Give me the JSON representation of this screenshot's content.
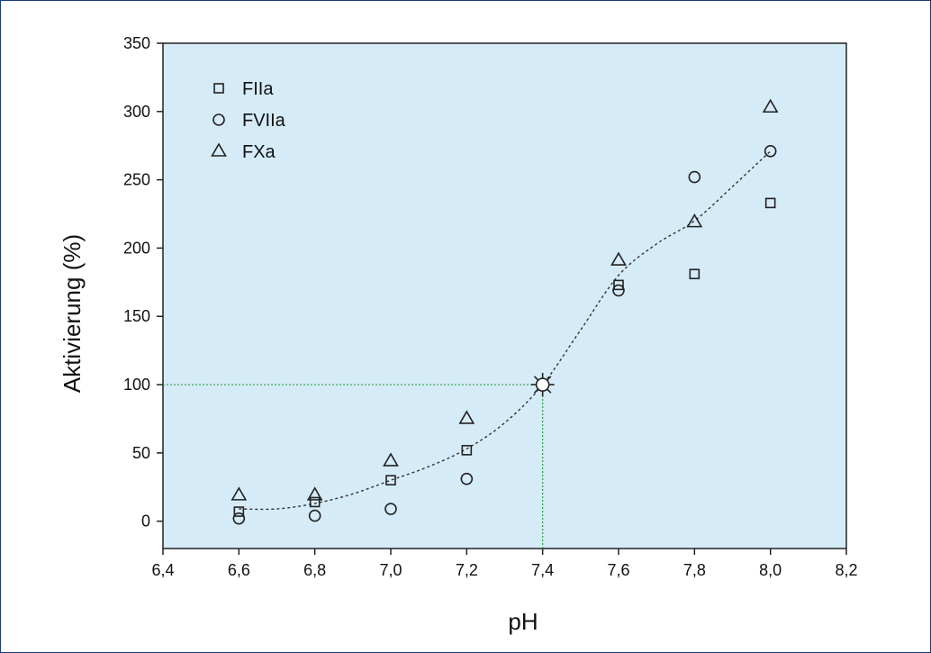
{
  "chart_data": {
    "type": "scatter",
    "title": "",
    "xlabel": "pH",
    "ylabel": "Aktivierung (%)",
    "xlim": [
      6.4,
      8.2
    ],
    "ylim": [
      -20,
      350
    ],
    "x_ticks": [
      "6,4",
      "6,6",
      "6,8",
      "7,0",
      "7,2",
      "7,4",
      "7,6",
      "7,8",
      "8,0",
      "8,2"
    ],
    "y_ticks": [
      "0",
      "50",
      "100",
      "150",
      "200",
      "250",
      "300",
      "350"
    ],
    "grid": false,
    "legend_position": "top-left",
    "plot_background": "#d6ebf8",
    "reference_color": "#2e9e44",
    "series": [
      {
        "name": "FIIa",
        "marker": "square",
        "x": [
          6.6,
          6.8,
          7.0,
          7.2,
          7.6,
          7.8,
          8.0
        ],
        "y": [
          7,
          14,
          30,
          52,
          173,
          181,
          233
        ]
      },
      {
        "name": "FVIIa",
        "marker": "circle",
        "x": [
          6.6,
          6.8,
          7.0,
          7.2,
          7.6,
          7.8,
          8.0
        ],
        "y": [
          2,
          4,
          9,
          31,
          169,
          252,
          271
        ]
      },
      {
        "name": "FXa",
        "marker": "triangle",
        "x": [
          6.6,
          6.8,
          7.0,
          7.2,
          7.6,
          7.8,
          8.0
        ],
        "y": [
          19,
          19,
          44,
          75,
          191,
          219,
          303
        ]
      }
    ],
    "reference_point": {
      "marker": "star",
      "x": 7.4,
      "y": 100
    },
    "fit_curve": {
      "style": "dashed",
      "x": [
        6.6,
        6.7,
        6.8,
        6.9,
        7.0,
        7.1,
        7.2,
        7.3,
        7.4,
        7.5,
        7.6,
        7.7,
        7.8,
        7.9,
        8.0
      ],
      "y": [
        9,
        9,
        13,
        20,
        30,
        40,
        53,
        72,
        100,
        140,
        180,
        203,
        220,
        245,
        271
      ]
    }
  }
}
